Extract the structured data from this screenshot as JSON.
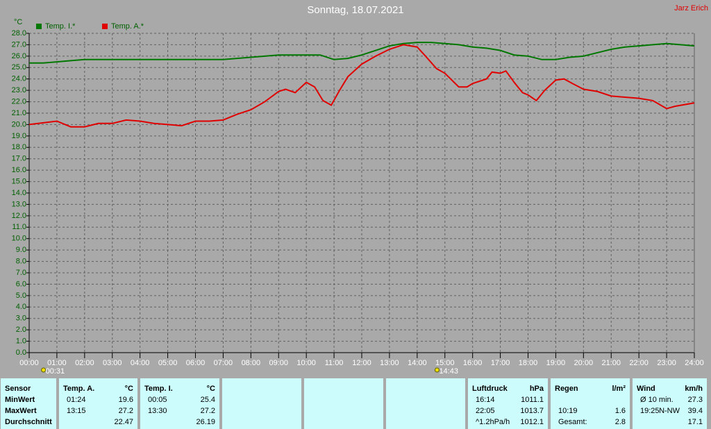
{
  "chart_data": {
    "type": "line",
    "title": "Sonntag, 18.07.2021",
    "author": "Jarz Erich",
    "y_label": "°C",
    "grid": true,
    "xlim": [
      0,
      24
    ],
    "ylim": [
      0,
      28
    ],
    "xticks": [
      {
        "value": 0,
        "label": "00:00"
      },
      {
        "value": 1,
        "label": "01:00"
      },
      {
        "value": 2,
        "label": "02:00"
      },
      {
        "value": 3,
        "label": "03:00"
      },
      {
        "value": 4,
        "label": "04:00"
      },
      {
        "value": 5,
        "label": "05:00"
      },
      {
        "value": 6,
        "label": "06:00"
      },
      {
        "value": 7,
        "label": "07:00"
      },
      {
        "value": 8,
        "label": "08:00"
      },
      {
        "value": 9,
        "label": "09:00"
      },
      {
        "value": 10,
        "label": "10:00"
      },
      {
        "value": 11,
        "label": "11:00"
      },
      {
        "value": 12,
        "label": "12:00"
      },
      {
        "value": 13,
        "label": "13:00"
      },
      {
        "value": 14,
        "label": "14:00"
      },
      {
        "value": 15,
        "label": "15:00"
      },
      {
        "value": 16,
        "label": "16:00"
      },
      {
        "value": 17,
        "label": "17:00"
      },
      {
        "value": 18,
        "label": "18:00"
      },
      {
        "value": 19,
        "label": "19:00"
      },
      {
        "value": 20,
        "label": "20:00"
      },
      {
        "value": 21,
        "label": "21:00"
      },
      {
        "value": 22,
        "label": "22:00"
      },
      {
        "value": 23,
        "label": "23:00"
      },
      {
        "value": 24,
        "label": "24:00"
      }
    ],
    "yticks": [
      {
        "value": 0,
        "label": "0.0"
      },
      {
        "value": 1,
        "label": "1.0"
      },
      {
        "value": 2,
        "label": "2.0"
      },
      {
        "value": 3,
        "label": "3.0"
      },
      {
        "value": 4,
        "label": "4.0"
      },
      {
        "value": 5,
        "label": "5.0"
      },
      {
        "value": 6,
        "label": "6.0"
      },
      {
        "value": 7,
        "label": "7.0"
      },
      {
        "value": 8,
        "label": "8.0"
      },
      {
        "value": 9,
        "label": "9.0"
      },
      {
        "value": 10,
        "label": "10.0"
      },
      {
        "value": 11,
        "label": "11.0"
      },
      {
        "value": 12,
        "label": "12.0"
      },
      {
        "value": 13,
        "label": "13.0"
      },
      {
        "value": 14,
        "label": "14.0"
      },
      {
        "value": 15,
        "label": "15.0"
      },
      {
        "value": 16,
        "label": "16.0"
      },
      {
        "value": 17,
        "label": "17.0"
      },
      {
        "value": 18,
        "label": "18.0"
      },
      {
        "value": 19,
        "label": "19.0"
      },
      {
        "value": 20,
        "label": "20.0"
      },
      {
        "value": 21,
        "label": "21.0"
      },
      {
        "value": 22,
        "label": "22.0"
      },
      {
        "value": 23,
        "label": "23.0"
      },
      {
        "value": 24,
        "label": "24.0"
      },
      {
        "value": 25,
        "label": "25.0"
      },
      {
        "value": 26,
        "label": "26.0"
      },
      {
        "value": 27,
        "label": "27.0"
      },
      {
        "value": 28,
        "label": "28.0"
      }
    ],
    "annotations": [
      "00:31",
      "14:43"
    ],
    "series": [
      {
        "name": "Temp. I.*",
        "color": "#007800",
        "x": [
          0,
          0.5,
          1,
          1.5,
          2,
          3,
          4,
          5,
          6,
          7,
          7.5,
          8,
          8.5,
          9,
          9.5,
          10,
          10.5,
          11,
          11.5,
          12,
          12.5,
          13,
          13.5,
          14,
          14.5,
          15,
          15.5,
          16,
          16.5,
          17,
          17.5,
          18,
          18.5,
          19,
          19.5,
          20,
          20.5,
          21,
          21.5,
          22,
          22.5,
          23,
          23.5,
          24
        ],
        "values": [
          25.4,
          25.4,
          25.5,
          25.6,
          25.7,
          25.7,
          25.7,
          25.7,
          25.7,
          25.7,
          25.8,
          25.9,
          26.0,
          26.1,
          26.1,
          26.1,
          26.1,
          25.7,
          25.8,
          26.1,
          26.5,
          26.9,
          27.1,
          27.2,
          27.2,
          27.1,
          27.0,
          26.8,
          26.7,
          26.5,
          26.1,
          26.0,
          25.7,
          25.7,
          25.9,
          26.0,
          26.3,
          26.6,
          26.8,
          26.9,
          27.0,
          27.1,
          27.0,
          26.9
        ]
      },
      {
        "name": "Temp. A.*",
        "color": "#e00000",
        "x": [
          0,
          1,
          1.5,
          2,
          2.5,
          3,
          3.5,
          4,
          4.5,
          5,
          5.5,
          6,
          6.5,
          7,
          7.5,
          8,
          8.5,
          9,
          9.25,
          9.6,
          10,
          10.3,
          10.6,
          10.9,
          11.2,
          11.5,
          12,
          12.5,
          13,
          13.5,
          14,
          14.3,
          14.7,
          15,
          15.5,
          15.8,
          16,
          16.5,
          16.7,
          17,
          17.2,
          17.5,
          17.8,
          18,
          18.3,
          18.6,
          19,
          19.3,
          19.6,
          20,
          20.5,
          21,
          21.5,
          22,
          22.5,
          23,
          23.3,
          24
        ],
        "values": [
          20.0,
          20.3,
          19.8,
          19.8,
          20.1,
          20.1,
          20.4,
          20.3,
          20.1,
          20.0,
          19.9,
          20.3,
          20.3,
          20.4,
          20.9,
          21.3,
          22.0,
          22.9,
          23.1,
          22.8,
          23.7,
          23.3,
          22.1,
          21.7,
          23.0,
          24.2,
          25.3,
          26.0,
          26.6,
          27.0,
          26.8,
          26.0,
          24.9,
          24.5,
          23.3,
          23.3,
          23.6,
          24.0,
          24.6,
          24.5,
          24.7,
          23.7,
          22.8,
          22.6,
          22.1,
          23.0,
          23.9,
          24.0,
          23.6,
          23.1,
          22.9,
          22.5,
          22.4,
          22.3,
          22.1,
          21.4,
          21.6,
          21.9
        ]
      }
    ]
  },
  "stats_table": {
    "groups": [
      {
        "header": [
          "Sensor"
        ],
        "rows": [
          [
            "MinWert"
          ],
          [
            "MaxWert"
          ],
          [
            "Durchschnitt"
          ]
        ]
      },
      {
        "header": [
          "Temp. A.",
          "°C"
        ],
        "rows": [
          [
            "01:24",
            "19.6"
          ],
          [
            "13:15",
            "27.2"
          ],
          [
            null,
            "22.47"
          ]
        ]
      },
      {
        "header": [
          "Temp. I.",
          "°C"
        ],
        "rows": [
          [
            "00:05",
            "25.4"
          ],
          [
            "13:30",
            "27.2"
          ],
          [
            null,
            "26.19"
          ]
        ]
      },
      {
        "header": [],
        "rows": []
      },
      {
        "header": [],
        "rows": []
      },
      {
        "header": [],
        "rows": []
      },
      {
        "header": [
          "Luftdruck",
          "hPa"
        ],
        "rows": [
          [
            "16:14",
            "1011.1"
          ],
          [
            "22:05",
            "1013.7"
          ],
          [
            "^1.2hPa/h",
            "1012.1"
          ]
        ]
      },
      {
        "header": [
          "Regen",
          "l/m²"
        ],
        "rows": [
          [
            null,
            null
          ],
          [
            "10:19",
            "1.6"
          ],
          [
            "Gesamt:",
            "2.8"
          ]
        ]
      },
      {
        "header": [
          "Wind",
          "km/h"
        ],
        "rows": [
          [
            "Ø 10 min.",
            "27.3"
          ],
          [
            "19:25",
            "N-NW",
            "39.4"
          ],
          [
            null,
            "17.1"
          ]
        ]
      }
    ]
  }
}
